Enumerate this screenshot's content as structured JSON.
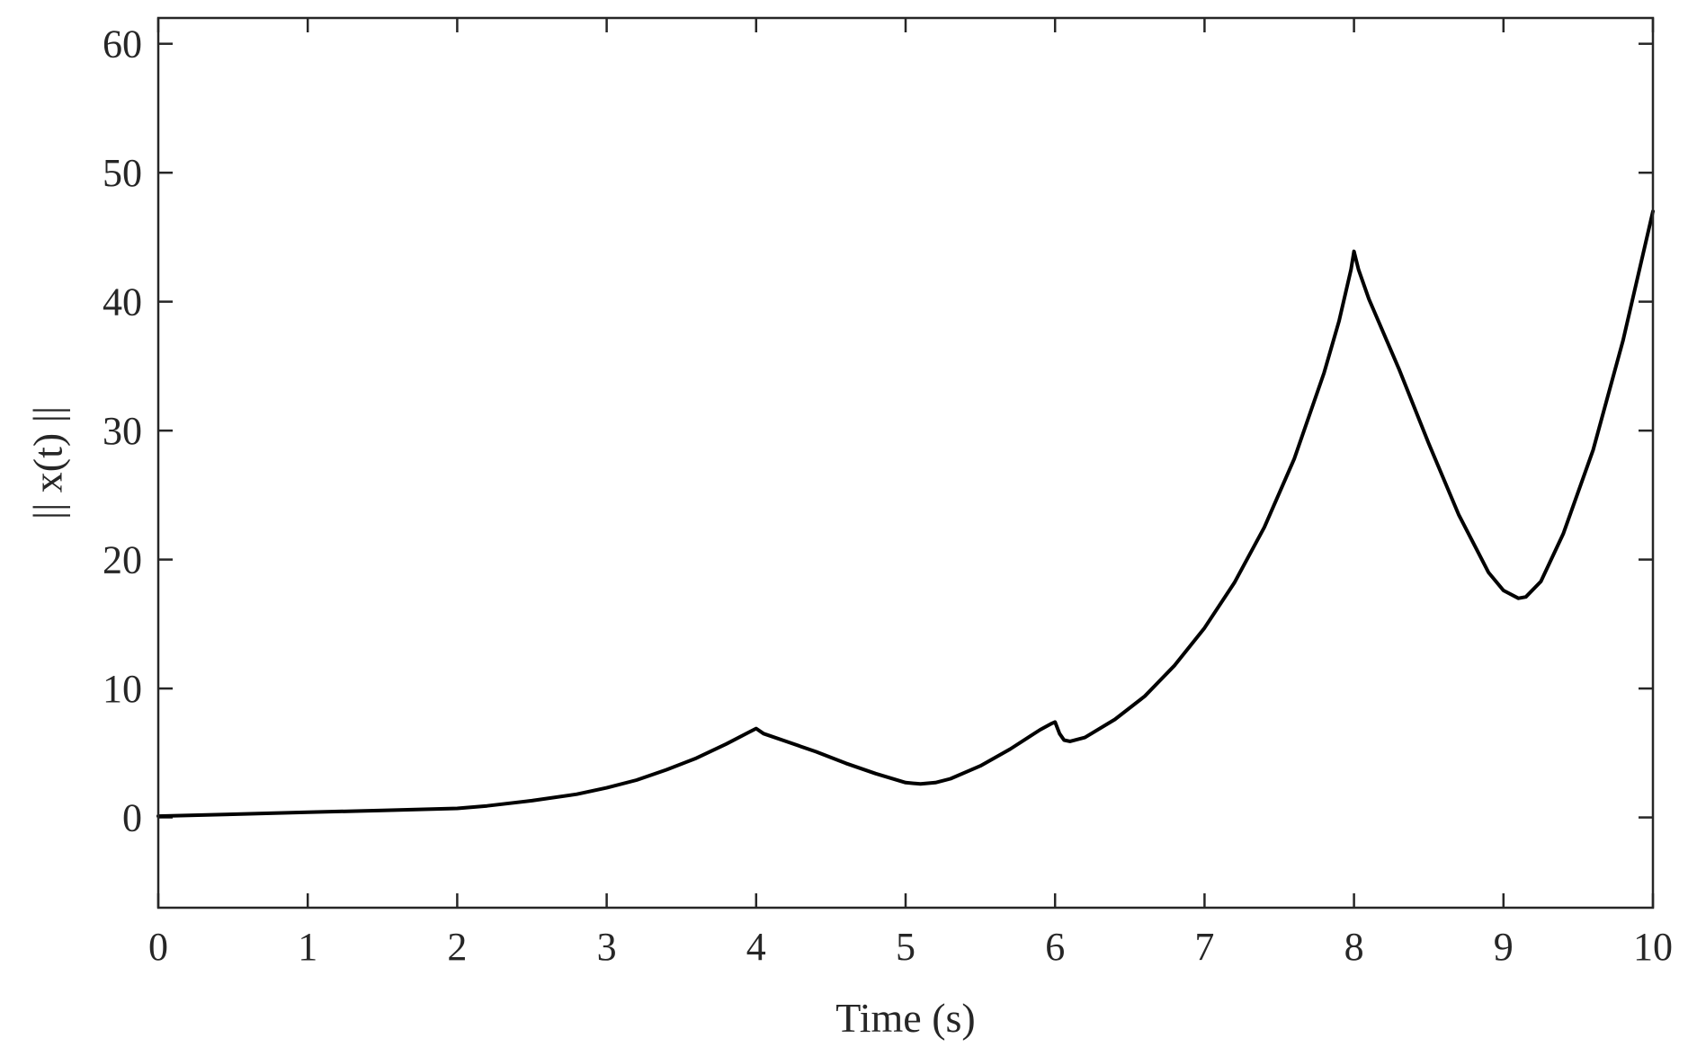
{
  "chart_data": {
    "type": "line",
    "title": "",
    "xlabel": "Time (s)",
    "ylabel": "|| x(t) ||",
    "xlim": [
      0,
      10
    ],
    "ylim": [
      -7,
      62
    ],
    "xticks": [
      0,
      1,
      2,
      3,
      4,
      5,
      6,
      7,
      8,
      9,
      10
    ],
    "yticks": [
      0,
      10,
      20,
      30,
      40,
      50,
      60
    ],
    "grid": false,
    "box": true,
    "colors": {
      "line": "#000000",
      "axes": "#262626"
    },
    "series": [
      {
        "x": [
          0,
          0.5,
          1,
          1.5,
          2,
          2.2,
          2.5,
          2.8,
          3,
          3.2,
          3.4,
          3.6,
          3.8,
          3.95,
          4,
          4.05,
          4.2,
          4.4,
          4.6,
          4.8,
          5,
          5.1,
          5.2,
          5.3,
          5.5,
          5.7,
          5.9,
          5.98,
          6,
          6.03,
          6.06,
          6.1,
          6.2,
          6.4,
          6.6,
          6.8,
          7,
          7.2,
          7.4,
          7.6,
          7.8,
          7.9,
          7.98,
          8,
          8.03,
          8.1,
          8.3,
          8.5,
          8.7,
          8.9,
          9,
          9.1,
          9.15,
          9.25,
          9.4,
          9.6,
          9.8,
          10
        ],
        "y": [
          0.1,
          0.25,
          0.4,
          0.55,
          0.7,
          0.9,
          1.3,
          1.8,
          2.3,
          2.9,
          3.7,
          4.6,
          5.7,
          6.6,
          6.9,
          6.5,
          5.9,
          5.1,
          4.2,
          3.4,
          2.7,
          2.6,
          2.7,
          3.0,
          4.0,
          5.3,
          6.8,
          7.3,
          7.4,
          6.5,
          6.0,
          5.9,
          6.2,
          7.6,
          9.4,
          11.8,
          14.7,
          18.2,
          22.5,
          27.8,
          34.5,
          38.5,
          42.5,
          43.9,
          42.5,
          40.2,
          34.8,
          29.0,
          23.5,
          19.0,
          17.6,
          17.0,
          17.1,
          18.3,
          22.0,
          28.5,
          37.0,
          47.0
        ]
      }
    ]
  }
}
